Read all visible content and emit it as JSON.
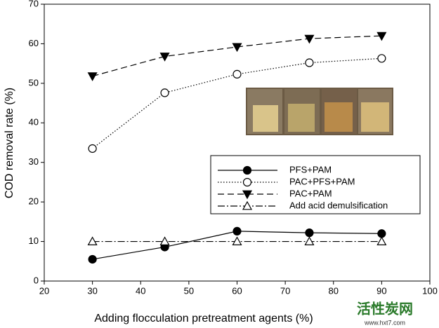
{
  "chart_data": {
    "type": "line",
    "xlabel": "Adding flocculation pretreatment agents (%)",
    "ylabel": "COD removal rate (%)",
    "x": [
      30,
      45,
      60,
      75,
      90
    ],
    "series": [
      {
        "name": "PFS+PAM",
        "color": "#000000",
        "linestyle": "solid",
        "marker": "circle",
        "filled": true,
        "values": [
          5.5,
          8.6,
          12.6,
          12.2,
          12.0
        ]
      },
      {
        "name": "PAC+PFS+PAM",
        "color": "#000000",
        "linestyle": "dotted",
        "marker": "circle",
        "filled": false,
        "values": [
          33.5,
          47.6,
          52.3,
          55.2,
          56.3
        ]
      },
      {
        "name": "PAC+PAM",
        "color": "#000000",
        "linestyle": "dashed",
        "marker": "triangle-down",
        "filled": true,
        "values": [
          51.8,
          56.8,
          59.2,
          61.3,
          62.0
        ]
      },
      {
        "name": "Add acid demulsification",
        "color": "#000000",
        "linestyle": "dashdot",
        "marker": "triangle-up",
        "filled": false,
        "values": [
          10,
          10,
          10,
          10,
          10
        ]
      }
    ],
    "xlim": [
      20,
      100
    ],
    "xticks": [
      20,
      30,
      40,
      50,
      60,
      70,
      80,
      90,
      100
    ],
    "ylim": [
      0,
      70
    ],
    "yticks": [
      0,
      10,
      20,
      30,
      40,
      50,
      60,
      70
    ],
    "grid": false,
    "legend": "center right"
  },
  "watermark": {
    "name": "活性炭网",
    "url": "www.hxt7.com"
  }
}
